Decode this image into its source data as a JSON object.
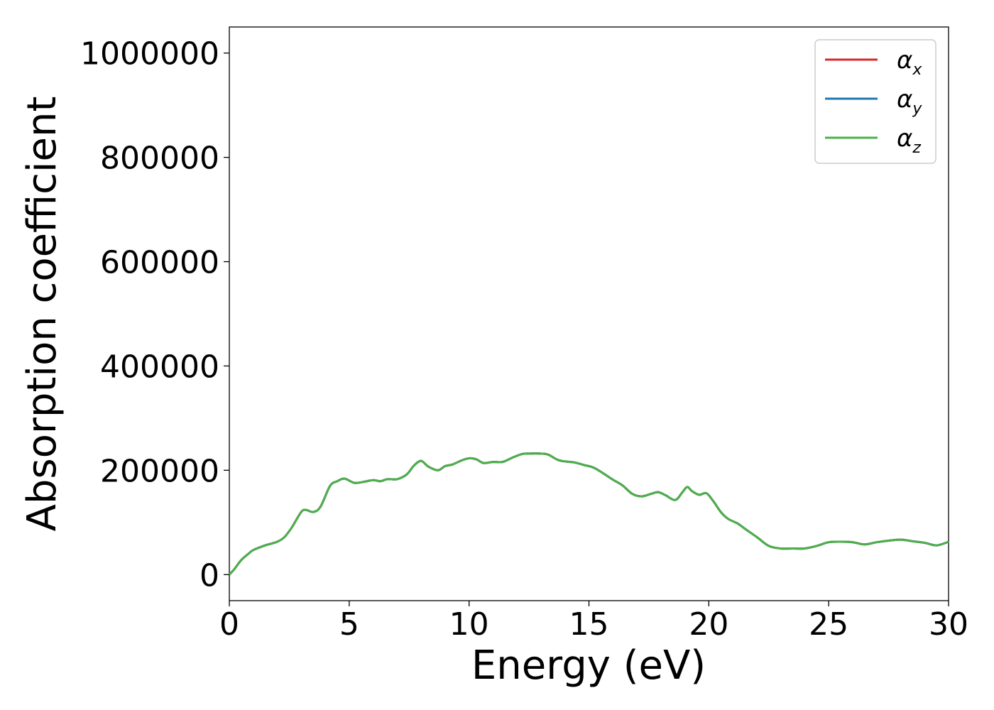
{
  "chart_data": {
    "type": "line",
    "xlabel": "Energy (eV)",
    "ylabel": "Absorption coefficient",
    "xlim": [
      0,
      30
    ],
    "ylim": [
      -50000,
      1050000
    ],
    "xticks": [
      "0",
      "5",
      "10",
      "15",
      "20",
      "25",
      "30"
    ],
    "yticks": [
      "0",
      "200000",
      "400000",
      "600000",
      "800000",
      "1000000"
    ],
    "grid": false,
    "legend_position": "top-right",
    "x": [
      0,
      0.2,
      0.5,
      0.8,
      1.0,
      1.5,
      2.0,
      2.3,
      2.6,
      3.0,
      3.2,
      3.5,
      3.8,
      4.2,
      4.5,
      4.8,
      5.2,
      5.5,
      6.0,
      6.3,
      6.6,
      7.0,
      7.4,
      7.7,
      8.0,
      8.3,
      8.7,
      9.0,
      9.3,
      9.7,
      10.0,
      10.3,
      10.6,
      11.0,
      11.4,
      11.8,
      12.2,
      12.5,
      13.0,
      13.3,
      13.7,
      14.0,
      14.4,
      14.8,
      15.2,
      15.6,
      16.0,
      16.4,
      16.8,
      17.2,
      17.6,
      17.9,
      18.2,
      18.6,
      18.9,
      19.1,
      19.3,
      19.6,
      19.9,
      20.2,
      20.5,
      20.8,
      21.2,
      21.5,
      22.0,
      22.5,
      23.0,
      23.5,
      24.0,
      24.5,
      25.0,
      25.5,
      26.0,
      26.5,
      27.0,
      27.5,
      28.0,
      28.5,
      29.0,
      29.5,
      30.0
    ],
    "series": [
      {
        "name": "x",
        "values": [
          0,
          10000,
          28000,
          40000,
          47000,
          56000,
          63000,
          72000,
          90000,
          120000,
          124000,
          120000,
          130000,
          170000,
          179000,
          184000,
          176000,
          177000,
          181000,
          179000,
          183000,
          183000,
          192000,
          209000,
          218000,
          207000,
          200000,
          208000,
          211000,
          219000,
          223000,
          221000,
          214000,
          216000,
          216000,
          224000,
          231000,
          232000,
          232000,
          230000,
          220000,
          217000,
          215000,
          210000,
          205000,
          194000,
          182000,
          171000,
          155000,
          150000,
          155000,
          158000,
          152000,
          143000,
          158000,
          168000,
          160000,
          153000,
          156000,
          140000,
          120000,
          107000,
          98000,
          88000,
          72000,
          55000,
          50000,
          50000,
          50000,
          55000,
          62000,
          63000,
          62000,
          58000,
          62000,
          65000,
          67000,
          64000,
          61000,
          56000,
          63000
        ]
      },
      {
        "name": "y",
        "values": [
          0,
          10000,
          28000,
          40000,
          47000,
          56000,
          63000,
          72000,
          90000,
          120000,
          124000,
          120000,
          130000,
          170000,
          179000,
          184000,
          176000,
          177000,
          181000,
          179000,
          183000,
          183000,
          192000,
          209000,
          218000,
          207000,
          200000,
          208000,
          211000,
          219000,
          223000,
          221000,
          214000,
          216000,
          216000,
          224000,
          231000,
          232000,
          232000,
          230000,
          220000,
          217000,
          215000,
          210000,
          205000,
          194000,
          182000,
          171000,
          155000,
          150000,
          155000,
          158000,
          152000,
          143000,
          158000,
          168000,
          160000,
          153000,
          156000,
          140000,
          120000,
          107000,
          98000,
          88000,
          72000,
          55000,
          50000,
          50000,
          50000,
          55000,
          62000,
          63000,
          62000,
          58000,
          62000,
          65000,
          67000,
          64000,
          61000,
          56000,
          63000
        ]
      },
      {
        "name": "z",
        "values": [
          0,
          10000,
          28000,
          40000,
          47000,
          56000,
          63000,
          72000,
          90000,
          120000,
          124000,
          120000,
          130000,
          170000,
          179000,
          184000,
          176000,
          177000,
          181000,
          179000,
          183000,
          183000,
          192000,
          209000,
          218000,
          207000,
          200000,
          208000,
          211000,
          219000,
          223000,
          221000,
          214000,
          216000,
          216000,
          224000,
          231000,
          232000,
          232000,
          230000,
          220000,
          217000,
          215000,
          210000,
          205000,
          194000,
          182000,
          171000,
          155000,
          150000,
          155000,
          158000,
          152000,
          143000,
          158000,
          168000,
          160000,
          153000,
          156000,
          140000,
          120000,
          107000,
          98000,
          88000,
          72000,
          55000,
          50000,
          50000,
          50000,
          55000,
          62000,
          63000,
          62000,
          58000,
          62000,
          65000,
          67000,
          64000,
          61000,
          56000,
          63000
        ]
      }
    ],
    "legend": [
      {
        "symbol": "α",
        "sub": "x",
        "color": "#d62728"
      },
      {
        "symbol": "α",
        "sub": "y",
        "color": "#1f77b4"
      },
      {
        "symbol": "α",
        "sub": "z",
        "color": "#4daf4a"
      }
    ]
  }
}
